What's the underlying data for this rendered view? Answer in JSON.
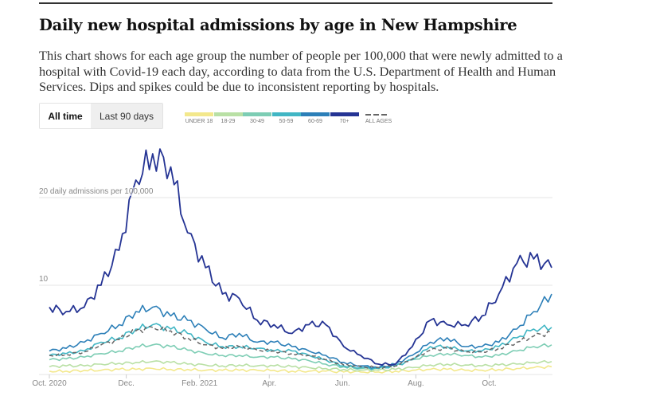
{
  "header": {
    "title": "Daily new hospital admissions by age in New Hampshire",
    "description": "This chart shows for each age group the number of people per 100,000 that were newly admitted to a hospital with Covid-19 each day, according to data from the U.S. Department of Health and Human Services. Dips and spikes could be due to inconsistent reporting by hospitals."
  },
  "tabs": [
    {
      "label": "All time",
      "active": true
    },
    {
      "label": "Last 90 days",
      "active": false
    }
  ],
  "chart_data": {
    "type": "line",
    "title": "Daily new hospital admissions by age in New Hampshire",
    "ylabel": "daily admissions per 100,000",
    "ylim": [
      0,
      26
    ],
    "y_ticks": [
      {
        "value": 10,
        "label": "10"
      },
      {
        "value": 20,
        "label": "20 daily admissions per 100,000"
      }
    ],
    "x_unit": "days since Oct. 1, 2020",
    "xlim": [
      0,
      418
    ],
    "x_ticks": [
      {
        "day": 0,
        "label": "Oct. 2020"
      },
      {
        "day": 64,
        "label": "Dec."
      },
      {
        "day": 125,
        "label": "Feb. 2021"
      },
      {
        "day": 183,
        "label": "Apr."
      },
      {
        "day": 244,
        "label": "Jun."
      },
      {
        "day": 305,
        "label": "Aug."
      },
      {
        "day": 366,
        "label": "Oct."
      }
    ],
    "grid": true,
    "legend_position": "top",
    "x": [
      0,
      14,
      29,
      43,
      58,
      72,
      86,
      101,
      115,
      130,
      144,
      158,
      173,
      187,
      202,
      216,
      230,
      245,
      259,
      274,
      288,
      302,
      317,
      331,
      346,
      360,
      374,
      389,
      403,
      418
    ],
    "series": [
      {
        "name": "UNDER 18",
        "color": "#f3e88c",
        "dashed": false,
        "values": [
          0.2,
          0.2,
          0.3,
          0.3,
          0.4,
          0.4,
          0.5,
          0.4,
          0.4,
          0.3,
          0.3,
          0.3,
          0.3,
          0.3,
          0.2,
          0.2,
          0.2,
          0.1,
          0.1,
          0.1,
          0.2,
          0.3,
          0.4,
          0.4,
          0.3,
          0.3,
          0.4,
          0.5,
          0.6,
          0.7
        ]
      },
      {
        "name": "18-29",
        "color": "#b9e0a5",
        "dashed": false,
        "values": [
          0.7,
          0.8,
          0.8,
          1,
          1.1,
          1.2,
          1.3,
          1.2,
          1,
          0.9,
          0.8,
          0.9,
          0.8,
          0.8,
          0.7,
          0.6,
          0.5,
          0.4,
          0.3,
          0.3,
          0.4,
          0.6,
          0.9,
          1,
          0.9,
          0.8,
          0.9,
          1,
          1.2,
          1.3
        ]
      },
      {
        "name": "30-49",
        "color": "#7dcdb4",
        "dashed": false,
        "values": [
          1.5,
          1.6,
          1.8,
          2.2,
          2.5,
          3,
          3.2,
          3,
          2.6,
          2.2,
          2,
          2,
          1.8,
          1.8,
          1.6,
          1.4,
          1,
          0.7,
          0.5,
          0.5,
          0.8,
          1.5,
          2,
          2.2,
          2,
          1.8,
          2,
          2.5,
          3,
          3.2
        ]
      },
      {
        "name": "50-59",
        "color": "#41b6c4",
        "dashed": false,
        "values": [
          2,
          2.2,
          2.5,
          3.5,
          4,
          5,
          5.5,
          5,
          4.5,
          3.5,
          3,
          3,
          2.8,
          2.5,
          2.5,
          2,
          1.5,
          0.8,
          0.6,
          0.5,
          0.8,
          1.5,
          3,
          3,
          2.5,
          2.5,
          3,
          4,
          5,
          5.2
        ]
      },
      {
        "name": "60-69",
        "color": "#2c7fb8",
        "dashed": false,
        "values": [
          2.5,
          2.8,
          3.5,
          4.5,
          5.5,
          7,
          7.5,
          6.5,
          6,
          5,
          4,
          4.5,
          3.5,
          3.5,
          3,
          2.5,
          2,
          1.2,
          0.8,
          0.6,
          1,
          2,
          3.5,
          4,
          3,
          3,
          3.5,
          5,
          7,
          9
        ]
      },
      {
        "name": "70+",
        "color": "#253494",
        "dashed": false,
        "values": [
          7.5,
          7,
          7.5,
          10,
          14,
          22,
          25,
          23.5,
          16,
          12,
          9,
          8.5,
          6,
          5.5,
          4.5,
          5.5,
          5.5,
          3,
          2,
          1,
          1,
          3,
          6,
          5.5,
          5.5,
          6.5,
          9,
          12.5,
          13,
          12
        ]
      },
      {
        "name": "ALL AGES",
        "color": "#666666",
        "dashed": true,
        "values": [
          2,
          2.1,
          2.4,
          3.2,
          3.8,
          4.8,
          5.2,
          4.8,
          4,
          3.2,
          2.8,
          3,
          2.6,
          2.5,
          2.2,
          2,
          1.5,
          0.9,
          0.7,
          0.6,
          0.8,
          1.6,
          2.6,
          2.8,
          2.4,
          2.4,
          2.8,
          3.5,
          4.2,
          4.6
        ]
      }
    ]
  }
}
